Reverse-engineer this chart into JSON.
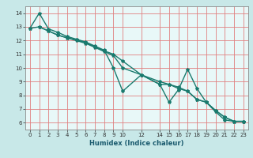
{
  "title": "",
  "xlabel": "Humidex (Indice chaleur)",
  "ylabel": "",
  "bg_color": "#c8e8e8",
  "plot_bg_color": "#e8f8f8",
  "grid_color": "#e08080",
  "line_color": "#1a7a6e",
  "xlim": [
    -0.5,
    23.5
  ],
  "ylim": [
    5.5,
    14.5
  ],
  "xticks": [
    0,
    1,
    2,
    3,
    4,
    5,
    6,
    7,
    8,
    9,
    10,
    12,
    14,
    15,
    16,
    17,
    18,
    19,
    20,
    21,
    22,
    23
  ],
  "yticks": [
    6,
    7,
    8,
    9,
    10,
    11,
    12,
    13,
    14
  ],
  "series1_x": [
    0,
    1,
    2,
    3,
    4,
    5,
    6,
    7,
    8,
    9,
    10,
    12,
    14,
    15,
    16,
    17,
    18,
    19,
    20,
    21,
    22,
    23
  ],
  "series1_y": [
    12.9,
    14.0,
    12.85,
    12.6,
    12.3,
    12.1,
    11.9,
    11.6,
    11.3,
    10.0,
    8.3,
    9.5,
    8.8,
    7.5,
    8.4,
    9.9,
    8.5,
    7.5,
    6.8,
    6.2,
    6.1,
    6.1
  ],
  "series2_x": [
    0,
    1,
    2,
    3,
    4,
    5,
    6,
    7,
    8,
    9,
    10,
    12,
    14,
    15,
    16,
    17,
    18,
    19,
    20,
    21,
    22,
    23
  ],
  "series2_y": [
    12.9,
    13.0,
    12.7,
    12.4,
    12.2,
    12.0,
    11.8,
    11.5,
    11.2,
    10.9,
    10.0,
    9.5,
    8.8,
    8.8,
    8.5,
    8.3,
    7.7,
    7.5,
    6.9,
    6.4,
    6.1,
    6.1
  ],
  "series3_x": [
    1,
    2,
    3,
    4,
    5,
    6,
    7,
    8,
    9,
    10,
    12,
    14,
    15,
    16,
    17,
    18,
    19,
    20,
    21,
    22,
    23
  ],
  "series3_y": [
    13.0,
    12.7,
    12.4,
    12.2,
    12.05,
    11.85,
    11.55,
    11.25,
    11.0,
    10.5,
    9.5,
    9.0,
    8.8,
    8.6,
    8.3,
    7.7,
    7.5,
    6.9,
    6.4,
    6.1,
    6.1
  ],
  "marker_size": 3.0,
  "linewidth": 1.0,
  "tick_fontsize": 5.0,
  "xlabel_fontsize": 6.0
}
